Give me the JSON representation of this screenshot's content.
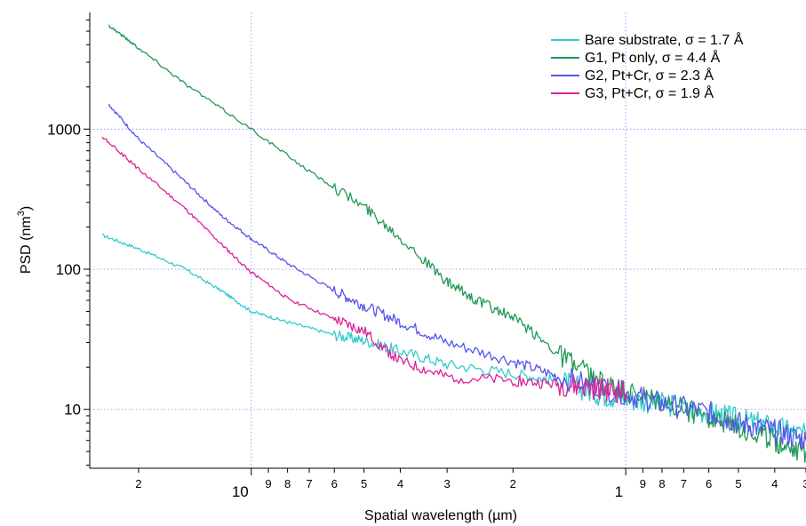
{
  "chart_data": {
    "type": "line",
    "title": "",
    "xlabel": "Spatial wavelength (µm)",
    "ylabel_main": "PSD (nm",
    "ylabel_sup": "3",
    "ylabel_close": ")",
    "x_scale": "log-reversed",
    "y_scale": "log",
    "xlim": [
      27,
      0.33
    ],
    "ylim": [
      3.8,
      6800
    ],
    "grid": true,
    "legend_position": "top-right",
    "y_ticks": [
      {
        "value": 10,
        "label": "10"
      },
      {
        "value": 100,
        "label": "100"
      },
      {
        "value": 1000,
        "label": "1000"
      }
    ],
    "x_major_ticks": [
      {
        "value": 10,
        "label": "10"
      },
      {
        "value": 1,
        "label": "1"
      }
    ],
    "x_minor_ticks": [
      {
        "value": 20,
        "label": "2"
      },
      {
        "value": 9,
        "label": "9"
      },
      {
        "value": 8,
        "label": "8"
      },
      {
        "value": 7,
        "label": "7"
      },
      {
        "value": 6,
        "label": "6"
      },
      {
        "value": 5,
        "label": "5"
      },
      {
        "value": 4,
        "label": "4"
      },
      {
        "value": 3,
        "label": "3"
      },
      {
        "value": 2,
        "label": "2"
      },
      {
        "value": 0.9,
        "label": "9"
      },
      {
        "value": 0.8,
        "label": "8"
      },
      {
        "value": 0.7,
        "label": "7"
      },
      {
        "value": 0.6,
        "label": "6"
      },
      {
        "value": 0.5,
        "label": "5"
      },
      {
        "value": 0.4,
        "label": "4"
      },
      {
        "value": 0.33,
        "label": "3"
      }
    ],
    "series": [
      {
        "name": "Bare substrate, σ = 1.7 Å",
        "color": "#33cccc",
        "x": [
          25,
          20,
          15,
          12,
          10,
          8,
          6,
          5,
          4,
          3,
          2,
          1.5,
          1.2,
          1,
          0.8,
          0.6,
          0.5,
          0.4,
          0.33
        ],
        "y": [
          175,
          140,
          100,
          70,
          50,
          42,
          34,
          31,
          26,
          21,
          18,
          16,
          13,
          12,
          11,
          9.5,
          8.5,
          7.5,
          6.5
        ]
      },
      {
        "name": "G1, Pt only, σ = 4.4 Å",
        "color": "#229955",
        "x": [
          24,
          20,
          15,
          10,
          7,
          5,
          4,
          3,
          2.5,
          2,
          1.5,
          1.2,
          1,
          0.8,
          0.6,
          0.5,
          0.4,
          0.33
        ],
        "y": [
          5500,
          3800,
          2100,
          1000,
          500,
          280,
          170,
          80,
          60,
          45,
          25,
          16,
          13,
          11,
          9,
          7.5,
          6,
          5
        ]
      },
      {
        "name": "G2, Pt+Cr, σ = 2.3 Å",
        "color": "#5555ee",
        "x": [
          24,
          20,
          15,
          12,
          10,
          8,
          6,
          5,
          4,
          3,
          2,
          1.5,
          1,
          0.8,
          0.6,
          0.5,
          0.4,
          0.33
        ],
        "y": [
          1500,
          850,
          420,
          240,
          165,
          110,
          70,
          55,
          42,
          30,
          22,
          17,
          13,
          11,
          9.5,
          8,
          7,
          6
        ]
      },
      {
        "name": "G3, Pt+Cr, σ = 1.9 Å",
        "color": "#dd2299",
        "x": [
          25,
          20,
          15,
          12,
          10,
          8,
          6,
          5,
          4,
          3,
          2,
          1.5,
          1.2,
          1
        ],
        "y": [
          880,
          520,
          270,
          150,
          95,
          62,
          44,
          36,
          22,
          17,
          16,
          15,
          14,
          13
        ]
      }
    ]
  }
}
